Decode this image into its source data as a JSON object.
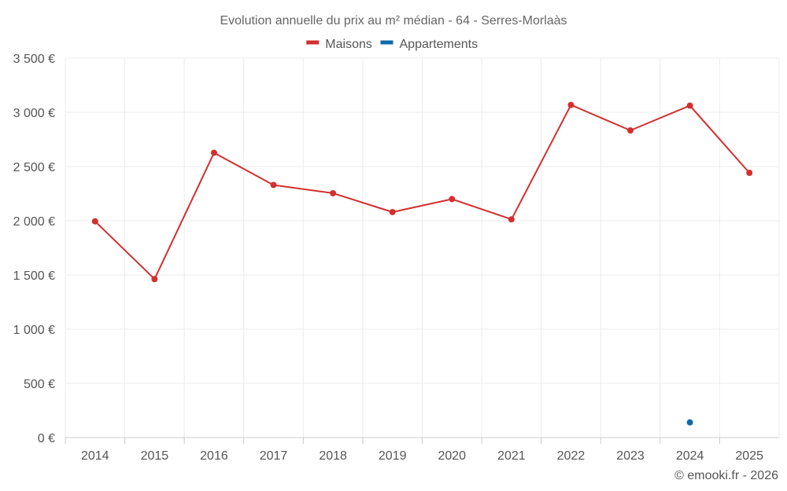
{
  "chart_data": {
    "type": "line",
    "title": "Evolution annuelle du prix au m² médian - 64 - Serres-Morlaàs",
    "categories": [
      "2014",
      "2015",
      "2016",
      "2017",
      "2018",
      "2019",
      "2020",
      "2021",
      "2022",
      "2023",
      "2024",
      "2025"
    ],
    "series": [
      {
        "name": "Maisons",
        "color": "#d32f2f",
        "values": [
          1995,
          1462,
          2627,
          2330,
          2254,
          2080,
          2200,
          2013,
          3068,
          2833,
          3062,
          2442
        ]
      },
      {
        "name": "Appartements",
        "color": "#0d6aa8",
        "values": [
          null,
          null,
          null,
          null,
          null,
          null,
          null,
          null,
          null,
          null,
          140,
          null
        ]
      }
    ],
    "y_ticks": [
      0,
      500,
      1000,
      1500,
      2000,
      2500,
      3000,
      3500
    ],
    "y_tick_labels": [
      "0 €",
      "500 €",
      "1 000 €",
      "1 500 €",
      "2 000 €",
      "2 500 €",
      "3 000 €",
      "3 500 €"
    ],
    "ylim": [
      0,
      3500
    ],
    "xlabel": "",
    "ylabel": "",
    "grid": true,
    "legend_position": "top-center",
    "credit": "© emooki.fr - 2026"
  }
}
